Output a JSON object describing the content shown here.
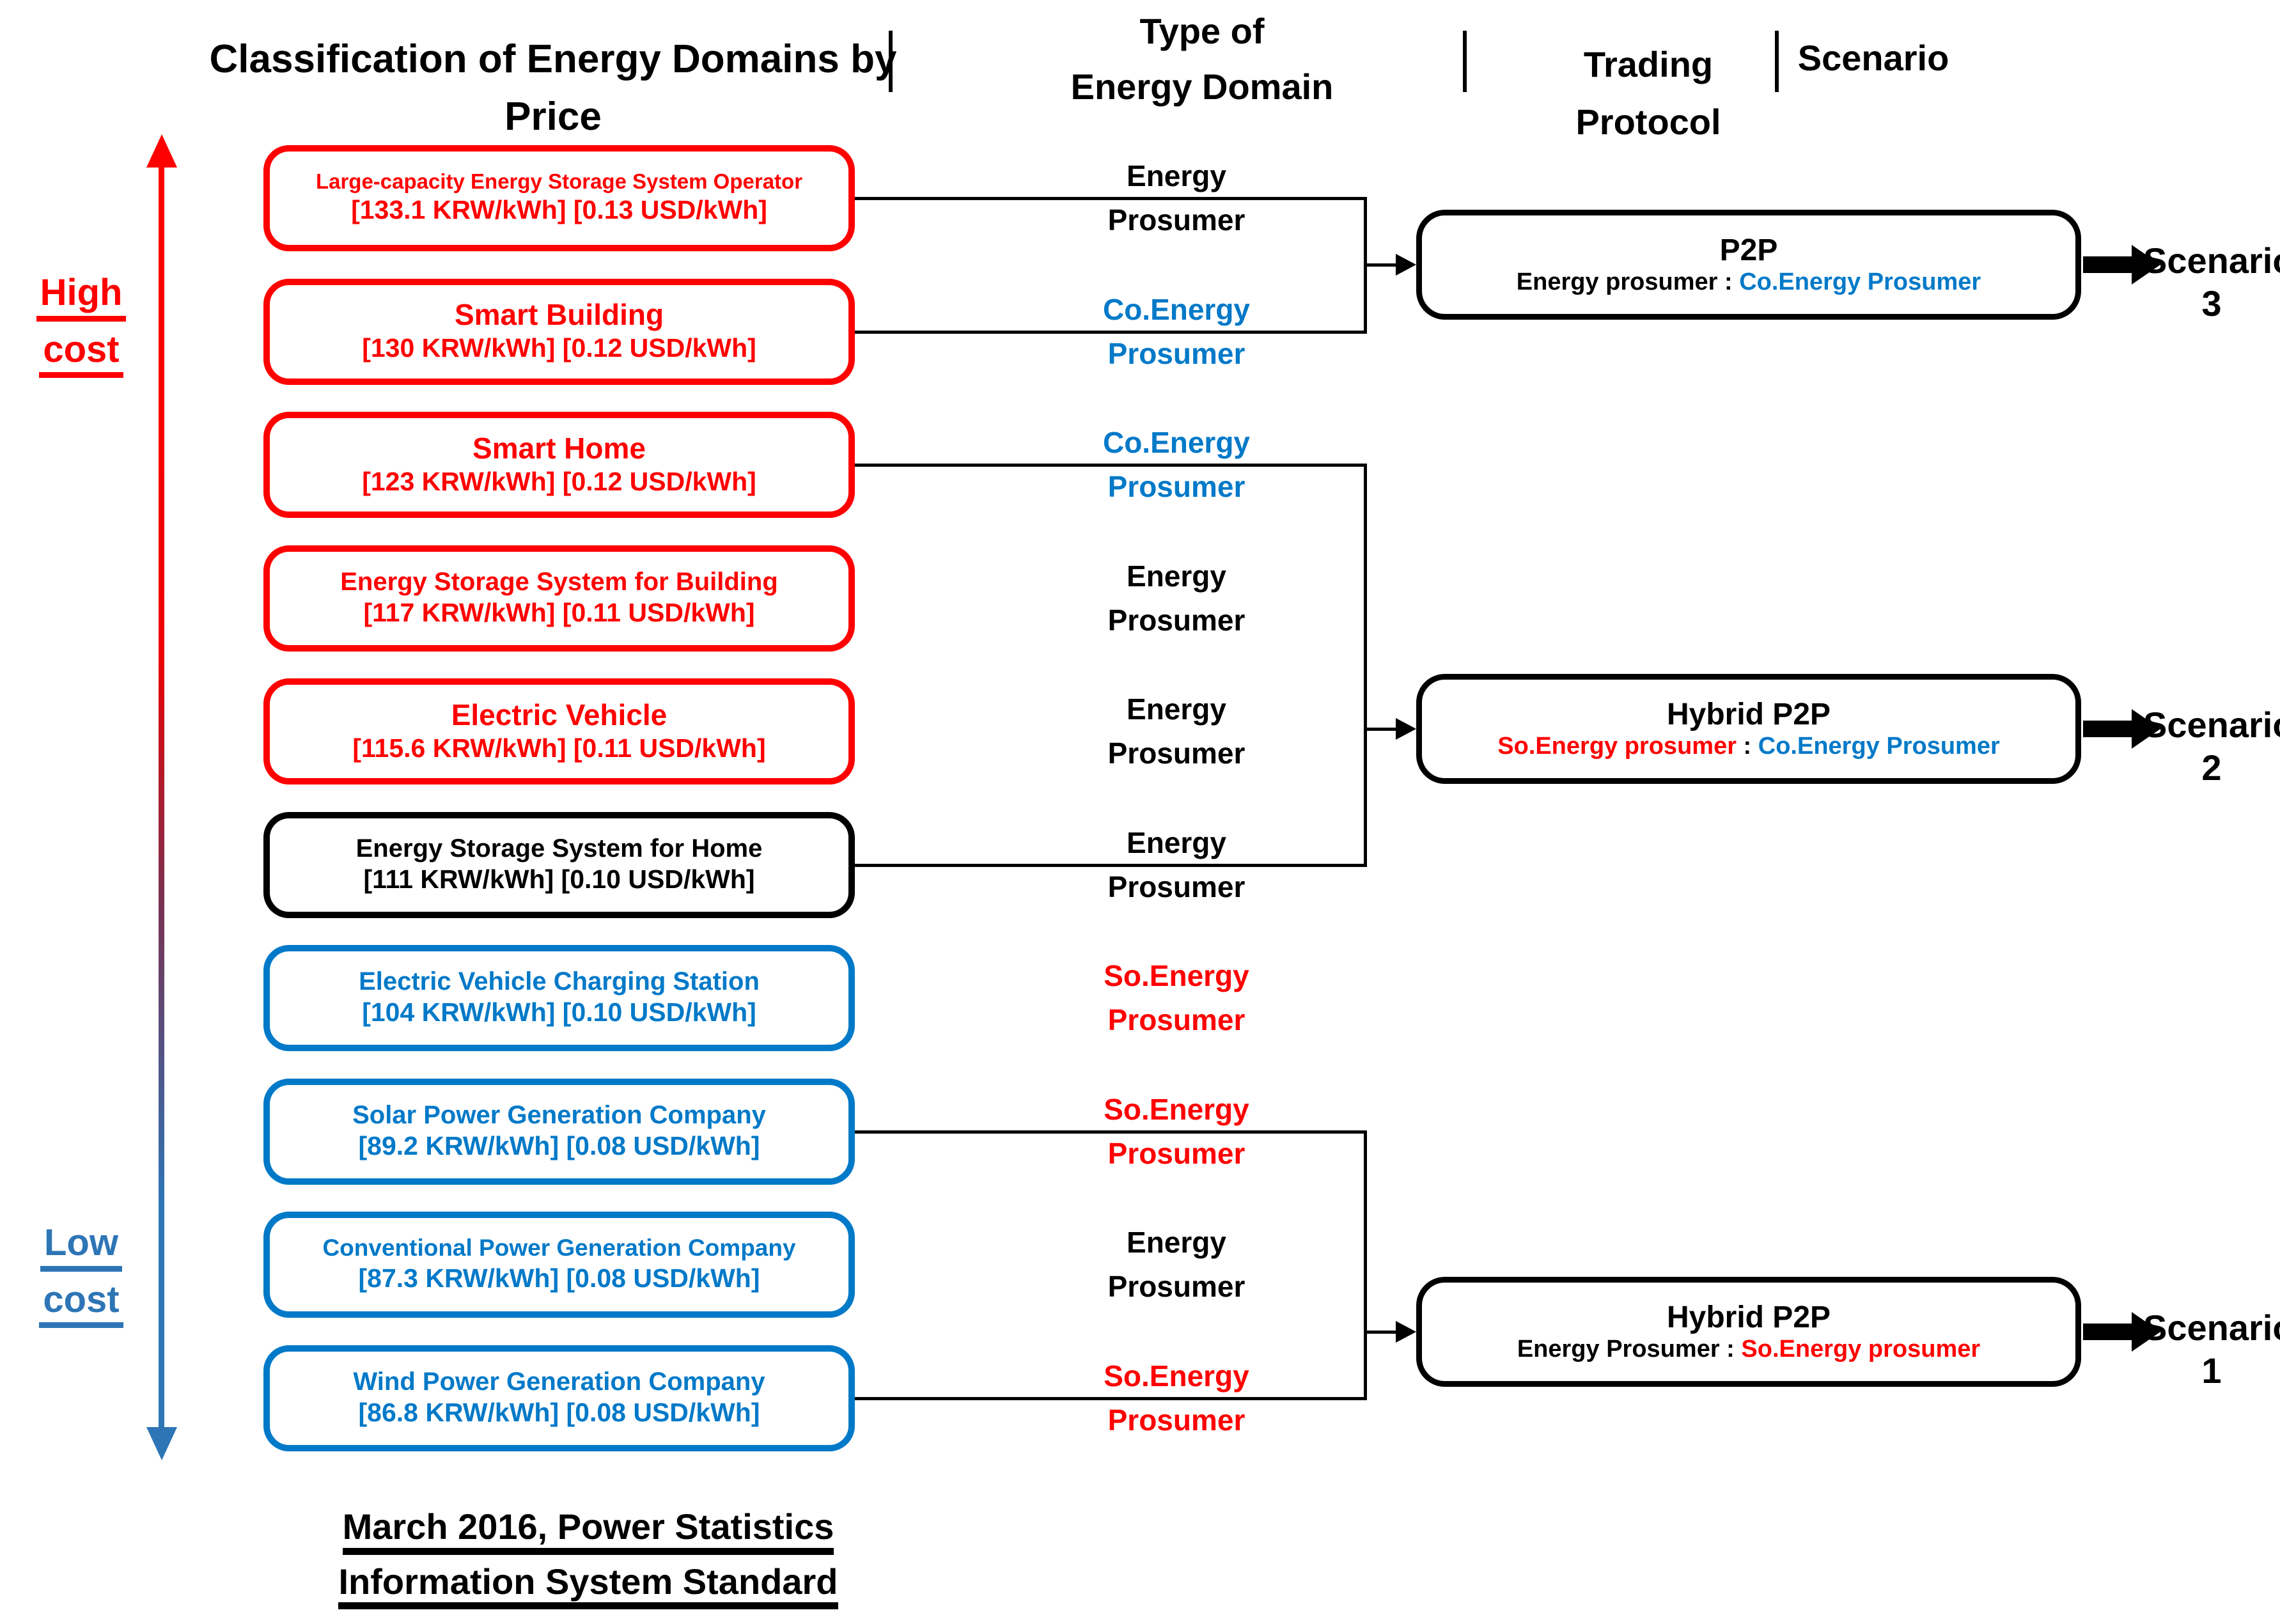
{
  "colors": {
    "red": "#ff0000",
    "blue": "#0079C8",
    "black": "#000000",
    "axis_blue": "#2E75B6"
  },
  "header": {
    "col1_lines": [
      "Classification of Energy Domains by",
      "Price"
    ],
    "col2_lines": [
      "Type of",
      "Energy Domain"
    ],
    "col3_lines": [
      "Trading",
      "Protocol"
    ],
    "col4": "Scenario"
  },
  "axis": {
    "high_lines": [
      "High",
      "cost"
    ],
    "low_lines": [
      "Low",
      "cost"
    ]
  },
  "rows": [
    {
      "title": "Large-capacity Energy Storage System Operator",
      "price": "[133.1 KRW/kWh] [0.13 USD/kWh]",
      "color": "red",
      "type_label": "Energy Prosumer",
      "type_color": "black",
      "connected": true
    },
    {
      "title": "Smart Building",
      "price": "[130 KRW/kWh] [0.12 USD/kWh]",
      "color": "red",
      "type_label": "Co.Energy Prosumer",
      "type_color": "blue",
      "connected": true
    },
    {
      "title": "Smart Home",
      "price": "[123 KRW/kWh] [0.12 USD/kWh]",
      "color": "red",
      "type_label": "Co.Energy Prosumer",
      "type_color": "blue",
      "connected": true
    },
    {
      "title": "Energy Storage System for Building",
      "price": "[117 KRW/kWh] [0.11 USD/kWh]",
      "color": "red",
      "type_label": "Energy Prosumer",
      "type_color": "black",
      "connected": false
    },
    {
      "title": "Electric Vehicle",
      "price": "[115.6 KRW/kWh] [0.11 USD/kWh]",
      "color": "red",
      "type_label": "Energy Prosumer",
      "type_color": "black",
      "connected": false
    },
    {
      "title": "Energy Storage System for Home",
      "price": "[111 KRW/kWh] [0.10 USD/kWh]",
      "color": "black",
      "type_label": "Energy Prosumer",
      "type_color": "black",
      "connected": true
    },
    {
      "title": "Electric Vehicle Charging Station",
      "price": "[104 KRW/kWh] [0.10 USD/kWh]",
      "color": "blue",
      "type_label": "So.Energy Prosumer",
      "type_color": "red",
      "connected": false
    },
    {
      "title": "Solar Power Generation Company",
      "price": "[89.2 KRW/kWh] [0.08 USD/kWh]",
      "color": "blue",
      "type_label": "So.Energy Prosumer",
      "type_color": "red",
      "connected": true
    },
    {
      "title": "Conventional Power Generation Company",
      "price": "[87.3 KRW/kWh] [0.08 USD/kWh]",
      "color": "blue",
      "type_label": "Energy Prosumer",
      "type_color": "black",
      "connected": false
    },
    {
      "title": "Wind Power Generation Company",
      "price": "[86.8 KRW/kWh] [0.08 USD/kWh]",
      "color": "blue",
      "type_label": "So.Energy Prosumer",
      "type_color": "red",
      "connected": true
    }
  ],
  "protocols": [
    {
      "title": "P2P",
      "subtitle_parts": [
        {
          "text": "Energy prosumer : ",
          "color": "black"
        },
        {
          "text": "Co.Energy Prosumer",
          "color": "blue"
        }
      ],
      "scenario_word": "Scenario",
      "scenario_number": "3",
      "from_row": 0,
      "to_row": 1
    },
    {
      "title": "Hybrid P2P",
      "subtitle_parts": [
        {
          "text": "So.Energy prosumer",
          "color": "red"
        },
        {
          "text": " : ",
          "color": "black"
        },
        {
          "text": "Co.Energy Prosumer",
          "color": "blue"
        }
      ],
      "scenario_word": "Scenario",
      "scenario_number": "2",
      "from_row": 2,
      "to_row": 5
    },
    {
      "title": "Hybrid P2P",
      "subtitle_parts": [
        {
          "text": "Energy Prosumer : ",
          "color": "black"
        },
        {
          "text": "So.Energy prosumer",
          "color": "red"
        }
      ],
      "scenario_word": "Scenario",
      "scenario_number": "1",
      "from_row": 7,
      "to_row": 9
    }
  ],
  "footnote_lines": [
    "March 2016, Power Statistics",
    "Information System Standard"
  ]
}
